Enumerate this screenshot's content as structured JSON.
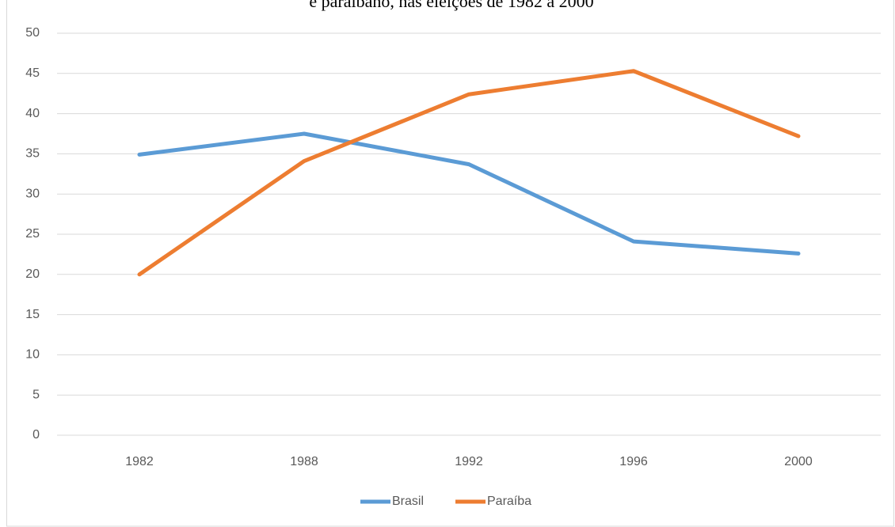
{
  "chart_data": {
    "type": "line",
    "title": "e paraibano, nas eleições de 1982 a 2000",
    "categories": [
      "1982",
      "1988",
      "1992",
      "1996",
      "2000"
    ],
    "series": [
      {
        "name": "Brasil",
        "color": "#5b9bd5",
        "values": [
          34.9,
          37.5,
          33.7,
          24.1,
          22.6
        ]
      },
      {
        "name": "Paraíba",
        "color": "#ed7d31",
        "values": [
          20,
          34.1,
          42.4,
          45.3,
          37.2
        ]
      }
    ],
    "ylim": [
      0,
      50
    ],
    "yticks": [
      0,
      5,
      10,
      15,
      20,
      25,
      30,
      35,
      40,
      45,
      50
    ],
    "grid": true,
    "legend": "bottom"
  }
}
